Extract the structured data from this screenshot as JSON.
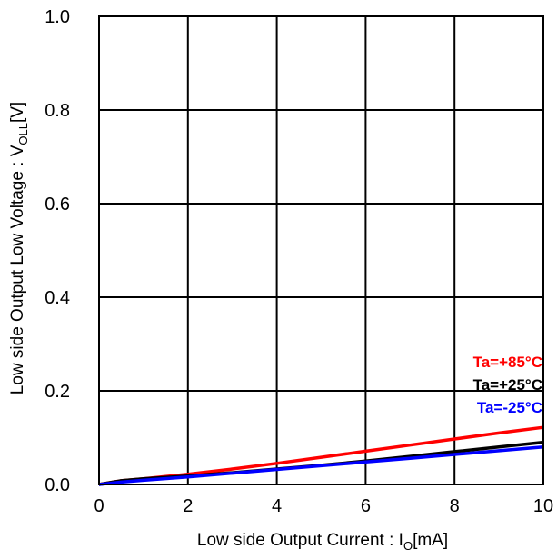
{
  "chart_data": {
    "type": "line",
    "title": "",
    "xlabel": {
      "main": "Low side Output Current : I",
      "sub": "O",
      "unit": "[mA]"
    },
    "ylabel": {
      "main": "Low side Output Low Voltage : V",
      "sub": "OLL",
      "unit": "[V]"
    },
    "xlim": [
      0,
      10
    ],
    "ylim": [
      0,
      1.0
    ],
    "xticks": [
      "0",
      "2",
      "4",
      "6",
      "8",
      "10"
    ],
    "yticks": [
      "0.0",
      "0.2",
      "0.4",
      "0.6",
      "0.8",
      "1.0"
    ],
    "grid": true,
    "legend_position": "bottom-right",
    "series": [
      {
        "name": "Ta=+85°C",
        "color": "#ff0000",
        "x": [
          0,
          0.5,
          1,
          2,
          3,
          4,
          5,
          6,
          7,
          8,
          9,
          10
        ],
        "y": [
          0.0,
          0.008,
          0.012,
          0.022,
          0.033,
          0.045,
          0.058,
          0.071,
          0.084,
          0.097,
          0.11,
          0.122
        ]
      },
      {
        "name": "Ta=+25°C",
        "color": "#000000",
        "x": [
          0,
          0.5,
          1,
          2,
          3,
          4,
          5,
          6,
          7,
          8,
          9,
          10
        ],
        "y": [
          0.0,
          0.008,
          0.012,
          0.018,
          0.025,
          0.033,
          0.041,
          0.05,
          0.06,
          0.07,
          0.08,
          0.09
        ]
      },
      {
        "name": "Ta=-25°C",
        "color": "#0000ff",
        "x": [
          0,
          0.5,
          1,
          2,
          3,
          4,
          5,
          6,
          7,
          8,
          9,
          10
        ],
        "y": [
          0.0,
          0.005,
          0.009,
          0.016,
          0.024,
          0.032,
          0.04,
          0.048,
          0.056,
          0.064,
          0.072,
          0.08
        ]
      }
    ]
  }
}
